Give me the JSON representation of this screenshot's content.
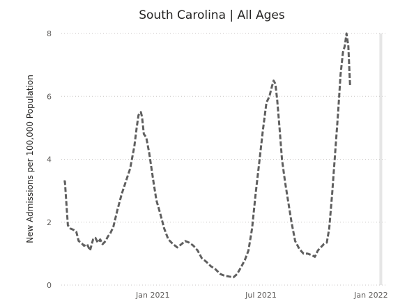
{
  "chart_data": {
    "type": "line",
    "title": "South Carolina | All Ages",
    "xlabel": "",
    "ylabel": "New Admissions per 100,000 Population",
    "ylim": [
      0,
      8
    ],
    "yticks": [
      0,
      2,
      4,
      6,
      8
    ],
    "xlim": [
      "2020-08-01",
      "2022-01-25"
    ],
    "xticks": [
      {
        "date": "2021-01-01",
        "label": "Jan 2021"
      },
      {
        "date": "2021-07-01",
        "label": "Jul 2021"
      },
      {
        "date": "2022-01-01",
        "label": "Jan 2022"
      }
    ],
    "grid": true,
    "highlight_range": [
      "2022-01-15",
      "2022-01-18"
    ],
    "highlight_color": "#e6e6e6",
    "series": [
      {
        "color": "#5f5f5f",
        "points": [
          [
            "2020-08-05",
            3.3
          ],
          [
            "2020-08-07",
            3.3
          ],
          [
            "2020-08-12",
            1.9
          ],
          [
            "2020-08-16",
            1.8
          ],
          [
            "2020-08-22",
            1.75
          ],
          [
            "2020-08-26",
            1.7
          ],
          [
            "2020-08-30",
            1.4
          ],
          [
            "2020-09-03",
            1.35
          ],
          [
            "2020-09-08",
            1.25
          ],
          [
            "2020-09-13",
            1.3
          ],
          [
            "2020-09-18",
            1.1
          ],
          [
            "2020-09-23",
            1.45
          ],
          [
            "2020-09-27",
            1.5
          ],
          [
            "2020-10-01",
            1.35
          ],
          [
            "2020-10-05",
            1.45
          ],
          [
            "2020-10-09",
            1.3
          ],
          [
            "2020-10-14",
            1.4
          ],
          [
            "2020-10-18",
            1.55
          ],
          [
            "2020-10-22",
            1.65
          ],
          [
            "2020-10-27",
            1.85
          ],
          [
            "2020-11-03",
            2.4
          ],
          [
            "2020-11-10",
            2.9
          ],
          [
            "2020-11-17",
            3.3
          ],
          [
            "2020-11-24",
            3.7
          ],
          [
            "2020-12-01",
            4.4
          ],
          [
            "2020-12-05",
            5.0
          ],
          [
            "2020-12-08",
            5.4
          ],
          [
            "2020-12-12",
            5.5
          ],
          [
            "2020-12-14",
            5.35
          ],
          [
            "2020-12-17",
            4.8
          ],
          [
            "2020-12-21",
            4.7
          ],
          [
            "2020-12-26",
            4.2
          ],
          [
            "2021-01-02",
            3.3
          ],
          [
            "2021-01-07",
            2.7
          ],
          [
            "2021-01-13",
            2.3
          ],
          [
            "2021-01-20",
            1.8
          ],
          [
            "2021-01-27",
            1.45
          ],
          [
            "2021-02-04",
            1.3
          ],
          [
            "2021-02-11",
            1.2
          ],
          [
            "2021-02-18",
            1.3
          ],
          [
            "2021-02-24",
            1.4
          ],
          [
            "2021-03-03",
            1.35
          ],
          [
            "2021-03-10",
            1.25
          ],
          [
            "2021-03-17",
            1.1
          ],
          [
            "2021-03-24",
            0.85
          ],
          [
            "2021-03-31",
            0.75
          ],
          [
            "2021-04-08",
            0.6
          ],
          [
            "2021-04-16",
            0.5
          ],
          [
            "2021-04-24",
            0.35
          ],
          [
            "2021-05-01",
            0.3
          ],
          [
            "2021-05-09",
            0.27
          ],
          [
            "2021-05-16",
            0.25
          ],
          [
            "2021-05-22",
            0.35
          ],
          [
            "2021-05-28",
            0.55
          ],
          [
            "2021-06-04",
            0.8
          ],
          [
            "2021-06-10",
            1.1
          ],
          [
            "2021-06-16",
            1.8
          ],
          [
            "2021-06-22",
            2.9
          ],
          [
            "2021-06-28",
            3.9
          ],
          [
            "2021-07-04",
            4.9
          ],
          [
            "2021-07-10",
            5.8
          ],
          [
            "2021-07-15",
            6.0
          ],
          [
            "2021-07-19",
            6.3
          ],
          [
            "2021-07-22",
            6.5
          ],
          [
            "2021-07-25",
            6.4
          ],
          [
            "2021-07-28",
            5.9
          ],
          [
            "2021-08-01",
            5.0
          ],
          [
            "2021-08-05",
            4.0
          ],
          [
            "2021-08-10",
            3.3
          ],
          [
            "2021-08-15",
            2.7
          ],
          [
            "2021-08-21",
            2.0
          ],
          [
            "2021-08-27",
            1.4
          ],
          [
            "2021-09-03",
            1.15
          ],
          [
            "2021-09-10",
            1.0
          ],
          [
            "2021-09-17",
            1.0
          ],
          [
            "2021-09-24",
            0.95
          ],
          [
            "2021-09-29",
            0.9
          ],
          [
            "2021-10-04",
            1.1
          ],
          [
            "2021-10-09",
            1.2
          ],
          [
            "2021-10-14",
            1.3
          ],
          [
            "2021-10-19",
            1.35
          ],
          [
            "2021-10-23",
            1.8
          ],
          [
            "2021-10-28",
            2.9
          ],
          [
            "2021-11-02",
            4.2
          ],
          [
            "2021-11-07",
            5.5
          ],
          [
            "2021-11-11",
            6.7
          ],
          [
            "2021-11-15",
            7.4
          ],
          [
            "2021-11-18",
            7.6
          ],
          [
            "2021-11-21",
            8.0
          ],
          [
            "2021-11-24",
            7.6
          ],
          [
            "2021-11-27",
            6.3
          ]
        ]
      }
    ]
  }
}
